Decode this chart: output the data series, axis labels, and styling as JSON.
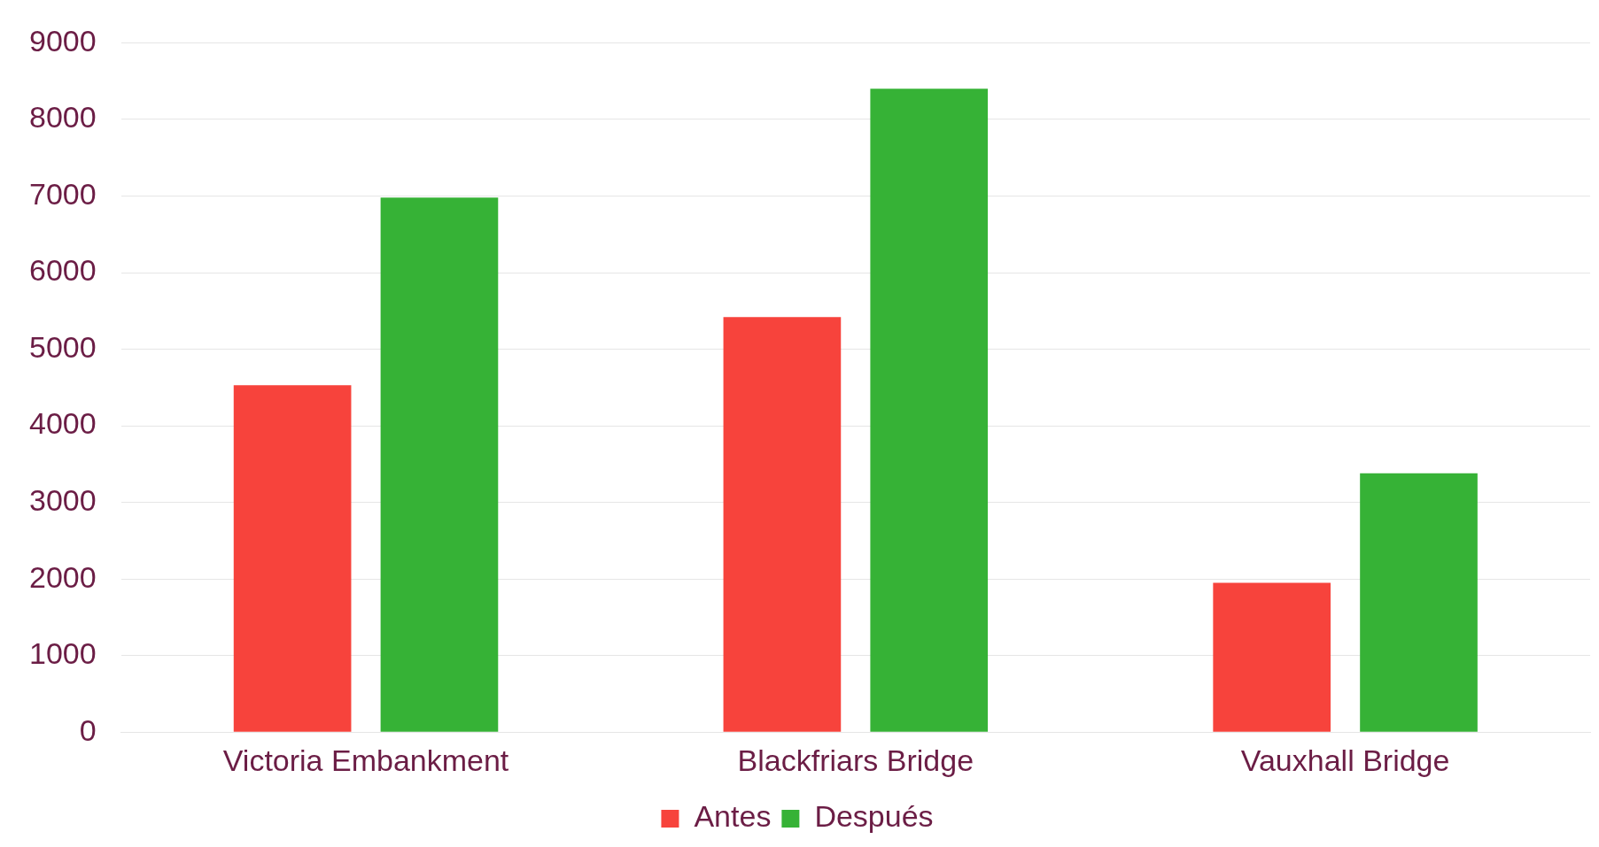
{
  "chart_data": {
    "type": "bar",
    "categories": [
      "Victoria Embankment",
      "Blackfriars Bridge",
      "Vauxhall Bridge"
    ],
    "series": [
      {
        "name": "Antes",
        "color": "#f7433c",
        "values": [
          4530,
          5420,
          1950
        ]
      },
      {
        "name": "Después",
        "color": "#36b236",
        "values": [
          6980,
          8400,
          3380
        ]
      }
    ],
    "ylim": [
      0,
      9000
    ],
    "yticks": [
      0,
      1000,
      2000,
      3000,
      4000,
      5000,
      6000,
      7000,
      8000,
      9000
    ],
    "grid": "y",
    "legend": "bottom"
  }
}
